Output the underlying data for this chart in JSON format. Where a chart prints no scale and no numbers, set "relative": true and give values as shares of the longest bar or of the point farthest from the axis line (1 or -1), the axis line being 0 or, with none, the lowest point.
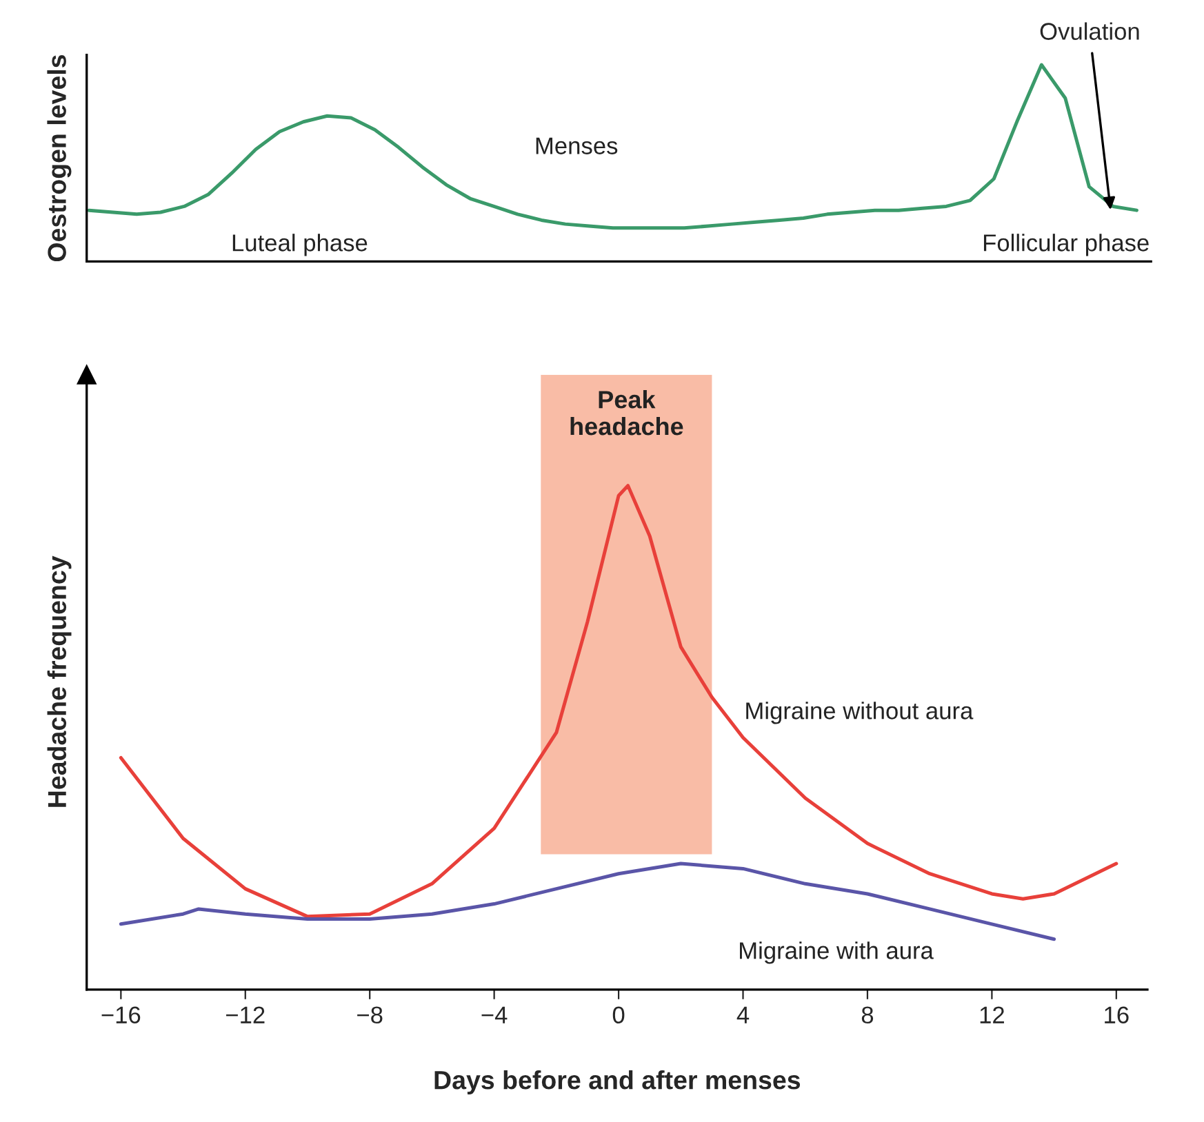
{
  "chart_data": [
    {
      "type": "line",
      "relative": true,
      "ylabel": "Oestrogen levels",
      "tick_labels": false,
      "categories": [
        null,
        null,
        null,
        null,
        null,
        null,
        null,
        null,
        null,
        null,
        null,
        null,
        null,
        null,
        null,
        null,
        null,
        null,
        null,
        null,
        null,
        null,
        null,
        null,
        null,
        null,
        null,
        null,
        null,
        null,
        null,
        null,
        null,
        null,
        null,
        null,
        null,
        null,
        null,
        null,
        null,
        null,
        null,
        null,
        null
      ],
      "series": [
        {
          "color": "#3a9a6a",
          "values": [
            0.26,
            0.25,
            0.24,
            0.25,
            0.28,
            0.34,
            0.45,
            0.57,
            0.66,
            0.71,
            0.74,
            0.73,
            0.67,
            0.58,
            0.48,
            0.39,
            0.32,
            0.28,
            0.24,
            0.21,
            0.19,
            0.18,
            0.17,
            0.17,
            0.17,
            0.17,
            0.18,
            0.19,
            0.2,
            0.21,
            0.22,
            0.24,
            0.25,
            0.26,
            0.26,
            0.27,
            0.28,
            0.31,
            0.42,
            0.72,
            1.0,
            0.83,
            0.38,
            0.28,
            0.26
          ]
        }
      ],
      "annotations": [
        "Luteal phase",
        "Menses",
        "Follicular phase",
        "Ovulation"
      ]
    },
    {
      "type": "line",
      "relative": true,
      "xlabel": "Days before and after menses",
      "ylabel": "Headache frequency",
      "tick_labels": "x",
      "xlim": [
        -17.1,
        17.0
      ],
      "xticks": [
        {
          "value": -16,
          "label": "−16"
        },
        {
          "value": -12,
          "label": "−12"
        },
        {
          "value": -8,
          "label": "−8"
        },
        {
          "value": -4,
          "label": "−4"
        },
        0,
        4,
        8,
        12,
        16
      ],
      "series": [
        {
          "name": "Migraine without aura",
          "color": "#e8403a",
          "x": [
            -16,
            -14,
            -12,
            -10,
            -8,
            -6,
            -4,
            -2,
            -1,
            0,
            0.3,
            1,
            2,
            3,
            4,
            6,
            8,
            10,
            12,
            13,
            14,
            16
          ],
          "values": [
            0.46,
            0.3,
            0.2,
            0.145,
            0.15,
            0.21,
            0.32,
            0.51,
            0.73,
            0.98,
            1.0,
            0.9,
            0.68,
            0.58,
            0.5,
            0.38,
            0.29,
            0.23,
            0.19,
            0.18,
            0.19,
            0.25
          ]
        },
        {
          "name": "Migraine with aura",
          "color": "#5a55a8",
          "x": [
            -16,
            -14,
            -13.5,
            -12,
            -10,
            -8,
            -6,
            -4,
            -2,
            0,
            2,
            4,
            6,
            8,
            10,
            12,
            14
          ],
          "values": [
            0.13,
            0.15,
            0.16,
            0.15,
            0.14,
            0.14,
            0.15,
            0.17,
            0.2,
            0.23,
            0.25,
            0.24,
            0.21,
            0.19,
            0.16,
            0.13,
            0.1
          ]
        }
      ],
      "bands": [
        {
          "axis": "x",
          "from": -2.5,
          "to": 3.0,
          "label": "Peak headache",
          "color": "#f26b3a"
        }
      ]
    }
  ]
}
